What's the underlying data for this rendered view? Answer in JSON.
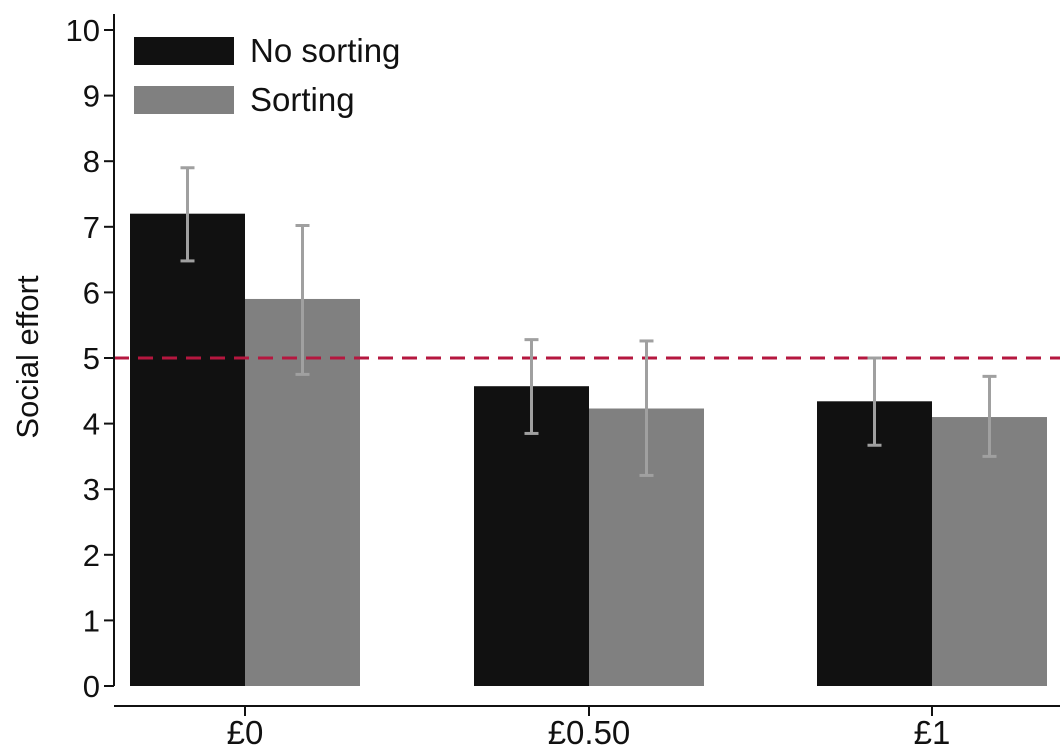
{
  "chart_data": {
    "type": "bar",
    "title": "",
    "xlabel": "",
    "ylabel": "Social effort",
    "categories": [
      "£0",
      "£0.50",
      "£1"
    ],
    "ylim": [
      0,
      10
    ],
    "yticks": [
      0,
      1,
      2,
      3,
      4,
      5,
      6,
      7,
      8,
      9,
      10
    ],
    "series": [
      {
        "name": "No sorting",
        "color": "#111111",
        "values": [
          7.2,
          4.57,
          4.34
        ],
        "error_low": [
          6.48,
          3.85,
          3.67
        ],
        "error_high": [
          7.9,
          5.28,
          5.0
        ]
      },
      {
        "name": "Sorting",
        "color": "#808080",
        "values": [
          5.9,
          4.23,
          4.1
        ],
        "error_low": [
          4.75,
          3.21,
          3.5
        ],
        "error_high": [
          7.02,
          5.26,
          4.72
        ]
      }
    ],
    "reference_line": {
      "value": 5.0,
      "color": "#b5173f",
      "style": "dashed"
    },
    "errorbar_color": "#a0a0a0",
    "legend": {
      "position": "top-left",
      "entries": [
        "No sorting",
        "Sorting"
      ]
    },
    "grid": false
  }
}
